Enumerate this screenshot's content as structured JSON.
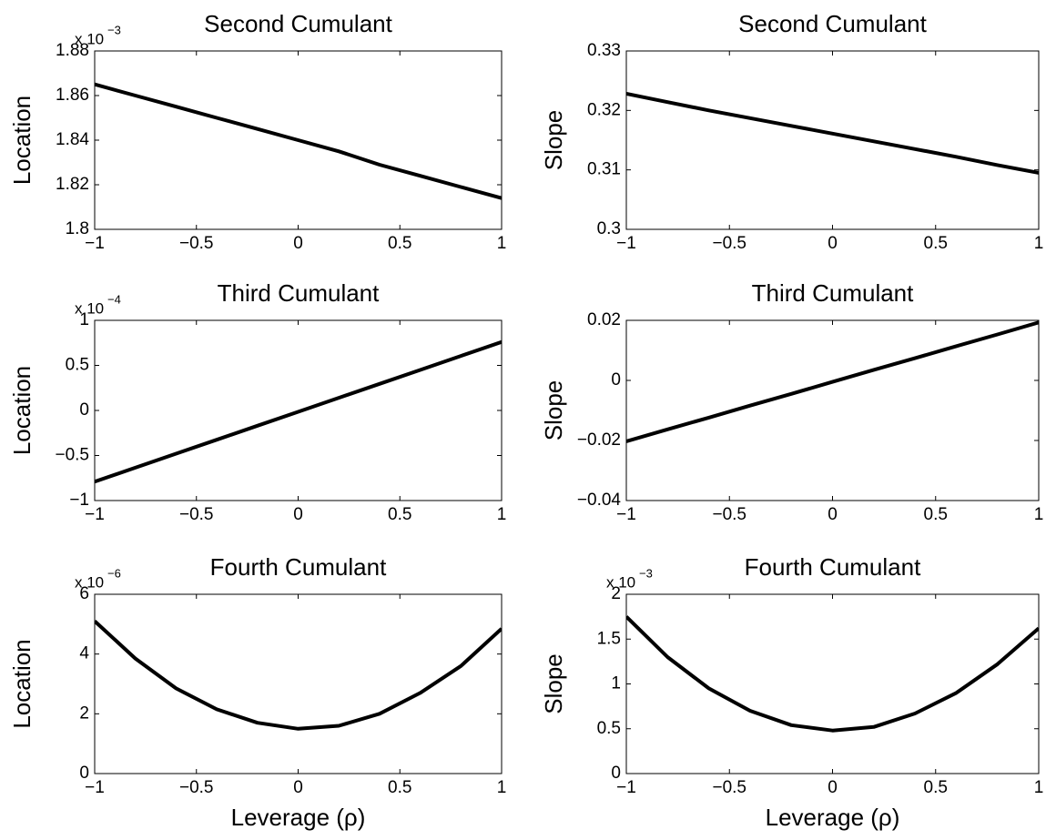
{
  "chart_data": [
    {
      "type": "line",
      "title": "Second Cumulant",
      "ylabel": "Location",
      "exponent": {
        "base": "x 10",
        "power": "−3"
      },
      "color": "#000000",
      "x": [
        -1,
        -0.8,
        -0.6,
        -0.4,
        -0.2,
        0,
        0.2,
        0.4,
        0.6,
        0.8,
        1
      ],
      "values": [
        1.865,
        1.86,
        1.855,
        1.85,
        1.845,
        1.84,
        1.835,
        1.829,
        1.824,
        1.819,
        1.814
      ],
      "xlim": [
        -1,
        1
      ],
      "xticks": [
        {
          "value": -1,
          "label": "−1"
        },
        {
          "value": -0.5,
          "label": "−0.5"
        },
        0,
        0.5,
        1
      ],
      "ylim": [
        1.8,
        1.88
      ],
      "yticks": [
        1.8,
        1.82,
        1.84,
        1.86,
        1.88
      ]
    },
    {
      "type": "line",
      "title": "Second Cumulant",
      "ylabel": "Slope",
      "color": "#000000",
      "x": [
        -1,
        -0.8,
        -0.6,
        -0.4,
        -0.2,
        0,
        0.2,
        0.4,
        0.6,
        0.8,
        1
      ],
      "values": [
        0.3228,
        0.3214,
        0.32,
        0.3187,
        0.3174,
        0.3161,
        0.3148,
        0.3135,
        0.3122,
        0.3108,
        0.3095
      ],
      "xlim": [
        -1,
        1
      ],
      "xticks": [
        {
          "value": -1,
          "label": "−1"
        },
        {
          "value": -0.5,
          "label": "−0.5"
        },
        0,
        0.5,
        1
      ],
      "ylim": [
        0.3,
        0.33
      ],
      "yticks": [
        0.3,
        0.31,
        0.32,
        0.33
      ]
    },
    {
      "type": "line",
      "title": "Third Cumulant",
      "ylabel": "Location",
      "exponent": {
        "base": "x 10",
        "power": "−4"
      },
      "color": "#000000",
      "x": [
        -1,
        -0.8,
        -0.6,
        -0.4,
        -0.2,
        0,
        0.2,
        0.4,
        0.6,
        0.8,
        1
      ],
      "values": [
        -0.79,
        -0.635,
        -0.48,
        -0.325,
        -0.17,
        -0.015,
        0.14,
        0.295,
        0.45,
        0.605,
        0.76
      ],
      "xlim": [
        -1,
        1
      ],
      "xticks": [
        {
          "value": -1,
          "label": "−1"
        },
        {
          "value": -0.5,
          "label": "−0.5"
        },
        0,
        0.5,
        1
      ],
      "ylim": [
        -1,
        1
      ],
      "yticks": [
        {
          "value": -1,
          "label": "−1"
        },
        {
          "value": -0.5,
          "label": "−0.5"
        },
        0,
        0.5,
        1
      ]
    },
    {
      "type": "line",
      "title": "Third Cumulant",
      "ylabel": "Slope",
      "color": "#000000",
      "x": [
        -1,
        -0.8,
        -0.6,
        -0.4,
        -0.2,
        0,
        0.2,
        0.4,
        0.6,
        0.8,
        1
      ],
      "values": [
        -0.0203,
        -0.0163,
        -0.0124,
        -0.0084,
        -0.0045,
        -0.0005,
        0.0035,
        0.0074,
        0.0114,
        0.0153,
        0.0193
      ],
      "xlim": [
        -1,
        1
      ],
      "xticks": [
        {
          "value": -1,
          "label": "−1"
        },
        {
          "value": -0.5,
          "label": "−0.5"
        },
        0,
        0.5,
        1
      ],
      "ylim": [
        -0.04,
        0.02
      ],
      "yticks": [
        {
          "value": -0.04,
          "label": "−0.04"
        },
        {
          "value": -0.02,
          "label": "−0.02"
        },
        0,
        0.02
      ]
    },
    {
      "type": "line",
      "title": "Fourth Cumulant",
      "ylabel": "Location",
      "xlabel": "Leverage (ρ)",
      "exponent": {
        "base": "x 10",
        "power": "−6"
      },
      "color": "#000000",
      "x": [
        -1,
        -0.8,
        -0.6,
        -0.4,
        -0.2,
        0,
        0.2,
        0.4,
        0.6,
        0.8,
        1
      ],
      "values": [
        5.1,
        3.85,
        2.85,
        2.15,
        1.7,
        1.5,
        1.6,
        2.0,
        2.7,
        3.6,
        4.85
      ],
      "xlim": [
        -1,
        1
      ],
      "xticks": [
        {
          "value": -1,
          "label": "−1"
        },
        {
          "value": -0.5,
          "label": "−0.5"
        },
        0,
        0.5,
        1
      ],
      "ylim": [
        0,
        6
      ],
      "yticks": [
        0,
        2,
        4,
        6
      ]
    },
    {
      "type": "line",
      "title": "Fourth Cumulant",
      "ylabel": "Slope",
      "xlabel": "Leverage (ρ)",
      "exponent": {
        "base": "x 10",
        "power": "−3"
      },
      "color": "#000000",
      "x": [
        -1,
        -0.8,
        -0.6,
        -0.4,
        -0.2,
        0,
        0.2,
        0.4,
        0.6,
        0.8,
        1
      ],
      "values": [
        1.75,
        1.3,
        0.95,
        0.7,
        0.54,
        0.48,
        0.52,
        0.67,
        0.9,
        1.22,
        1.62
      ],
      "xlim": [
        -1,
        1
      ],
      "xticks": [
        {
          "value": -1,
          "label": "−1"
        },
        {
          "value": -0.5,
          "label": "−0.5"
        },
        0,
        0.5,
        1
      ],
      "ylim": [
        0,
        2
      ],
      "yticks": [
        0,
        0.5,
        1,
        1.5,
        2
      ]
    }
  ]
}
